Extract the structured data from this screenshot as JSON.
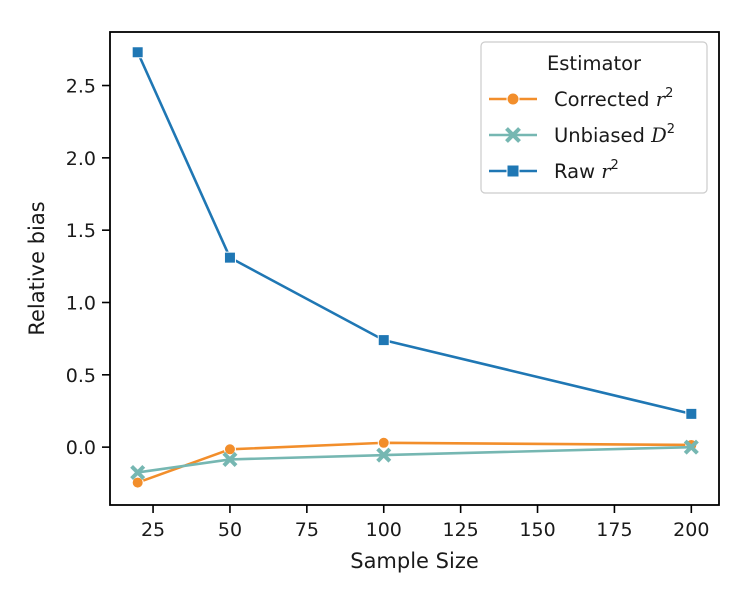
{
  "chart_data": {
    "type": "line",
    "title": "",
    "xlabel": "Sample Size",
    "ylabel": "Relative bias",
    "x": [
      20,
      50,
      100,
      200
    ],
    "xlim": [
      11,
      209
    ],
    "ylim": [
      -0.4,
      2.87
    ],
    "xticks": [
      25,
      50,
      75,
      100,
      125,
      150,
      175,
      200
    ],
    "yticks": [
      0.0,
      0.5,
      1.0,
      1.5,
      2.0,
      2.5
    ],
    "xtick_labels": [
      "25",
      "50",
      "75",
      "100",
      "125",
      "150",
      "175",
      "200"
    ],
    "ytick_labels": [
      "0.0",
      "0.5",
      "1.0",
      "1.5",
      "2.0",
      "2.5"
    ],
    "grid": false,
    "legend": {
      "title": "Estimator",
      "placement": "top-right",
      "entries": [
        {
          "name": "Corrected r",
          "sup": "2",
          "italic": "r"
        },
        {
          "name": "Unbiased D",
          "sup": "2",
          "italic": "D"
        },
        {
          "name": "Raw r",
          "sup": "2",
          "italic": "r"
        }
      ]
    },
    "series": [
      {
        "name": "Corrected r²",
        "color": "#f28e2b",
        "marker": "circle",
        "values": [
          -0.245,
          -0.015,
          0.03,
          0.015
        ]
      },
      {
        "name": "Unbiased D²",
        "color": "#76b7b2",
        "marker": "x",
        "values": [
          -0.175,
          -0.085,
          -0.055,
          0.0
        ]
      },
      {
        "name": "Raw r²",
        "color": "#1f77b4",
        "marker": "square",
        "values": [
          2.73,
          1.31,
          0.74,
          0.23
        ]
      }
    ]
  }
}
